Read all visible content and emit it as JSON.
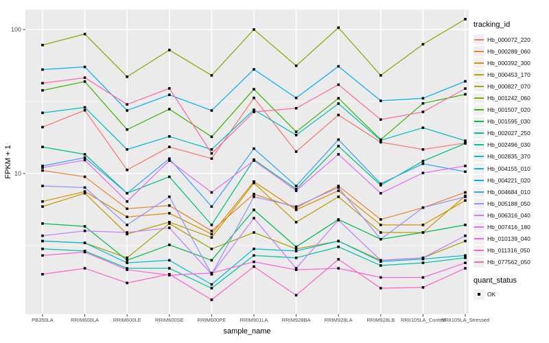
{
  "chart_data": {
    "type": "line",
    "title": "",
    "xlabel": "sample_name",
    "ylabel": "FPKM + 1",
    "y_scale": "log10",
    "y_tick_labels": [
      "100",
      "10"
    ],
    "y_tick_values": [
      100,
      10
    ],
    "y_minor_values": [
      31.62,
      3.162
    ],
    "ylim": [
      1.06,
      138
    ],
    "grid": true,
    "legend_position": "right",
    "legend_title": "tracking_id",
    "quant_status_title": "quant_status",
    "quant_status_label": "OK",
    "point_shape": "black-square",
    "colors": {
      "panel_bg": "#ebebeb",
      "grid": "#ffffff",
      "tick_text": "#4d4d4d",
      "point": "#000000"
    },
    "x_categories": [
      "PB350LA",
      "RRIM600LA",
      "RRIM600LE",
      "RRIM600SE",
      "RRIM600PE",
      "RRIM901LA",
      "RRIM928BA",
      "RRIM928LA",
      "RRIM928LB",
      "RRII105LA_Control",
      "RRII105LA_Stressed"
    ],
    "series": [
      {
        "name": "Hb_000072_220",
        "color": "#F8766D",
        "values": [
          21,
          27.5,
          10.6,
          15.3,
          12.7,
          33.5,
          14.2,
          25.5,
          16.5,
          14.7,
          16.3
        ]
      },
      {
        "name": "Hb_000289_060",
        "color": "#EA8331",
        "values": [
          10.5,
          9.5,
          5.7,
          6.0,
          4.0,
          7.2,
          5.8,
          8.2,
          4.8,
          5.8,
          7.4
        ]
      },
      {
        "name": "Hb_000392_300",
        "color": "#D89000",
        "values": [
          6.4,
          7.5,
          5.0,
          5.3,
          3.8,
          8.8,
          5.6,
          7.6,
          4.4,
          4.4,
          6.5
        ]
      },
      {
        "name": "Hb_000453_170",
        "color": "#C09B00",
        "values": [
          5.9,
          7.3,
          3.8,
          4.6,
          3.6,
          8.6,
          4.6,
          6.9,
          3.9,
          3.9,
          7.0
        ]
      },
      {
        "name": "Hb_000827_070",
        "color": "#A3A500",
        "values": [
          3.4,
          3.3,
          2.6,
          4.5,
          3.0,
          3.9,
          3.0,
          3.4,
          2.5,
          2.6,
          3.4
        ]
      },
      {
        "name": "Hb_001242_060",
        "color": "#7CAE00",
        "values": [
          78,
          93,
          47,
          72,
          48,
          100,
          56,
          103,
          48,
          79,
          118
        ]
      },
      {
        "name": "Hb_001507_020",
        "color": "#39B600",
        "values": [
          37.8,
          43.5,
          20.2,
          28,
          18,
          38.5,
          19.5,
          33.3,
          17.2,
          30.7,
          35.5
        ]
      },
      {
        "name": "Hb_001595_030",
        "color": "#00BB4E",
        "values": [
          4.5,
          4.3,
          2.5,
          3.2,
          2.5,
          5.6,
          3.1,
          4.8,
          3.5,
          3.9,
          4.4
        ]
      },
      {
        "name": "Hb_002027_250",
        "color": "#00BF7D",
        "values": [
          15.3,
          13.6,
          7.3,
          9.5,
          4.4,
          12.5,
          7.8,
          15.5,
          8.3,
          12.2,
          16.2
        ]
      },
      {
        "name": "Hb_002496_030",
        "color": "#00C1A3",
        "values": [
          3.0,
          2.9,
          2.2,
          2.2,
          1.6,
          2.7,
          2.6,
          3.1,
          2.3,
          2.4,
          2.6
        ]
      },
      {
        "name": "Hb_002835_370",
        "color": "#00BFC4",
        "values": [
          26.4,
          28.8,
          14.7,
          18.1,
          14.7,
          27.7,
          18.5,
          30.6,
          17.0,
          20.8,
          16.9
        ]
      },
      {
        "name": "Hb_004155_010",
        "color": "#00BBDB",
        "values": [
          3.4,
          3.3,
          2.4,
          2.5,
          1.7,
          3.0,
          2.9,
          3.4,
          2.45,
          2.55,
          2.7
        ]
      },
      {
        "name": "Hb_004221_020",
        "color": "#00B0F6",
        "values": [
          52.7,
          55,
          27.4,
          35.2,
          27.4,
          52.9,
          33.5,
          55.5,
          32,
          33.3,
          43.7
        ]
      },
      {
        "name": "Hb_004684_010",
        "color": "#35A2FF",
        "values": [
          11.3,
          12.9,
          7.3,
          12.7,
          5.9,
          14.9,
          8.2,
          17.2,
          8.5,
          11.7,
          10.3
        ]
      },
      {
        "name": "Hb_005188_050",
        "color": "#9590FF",
        "values": [
          8.2,
          8.0,
          4.4,
          6.9,
          2.0,
          6.9,
          5.9,
          8.0,
          3.5,
          5.8,
          6.9
        ]
      },
      {
        "name": "Hb_006316_040",
        "color": "#C77CFF",
        "values": [
          3.7,
          4.0,
          3.9,
          4.2,
          2.0,
          4.9,
          2.2,
          4.75,
          2.5,
          2.6,
          3.7
        ]
      },
      {
        "name": "Hb_007416_180",
        "color": "#E76BF3",
        "values": [
          11.0,
          12.4,
          6.4,
          12.3,
          7.4,
          12.3,
          7.6,
          13.6,
          7.3,
          10.1,
          11.3
        ]
      },
      {
        "name": "Hb_010139_040",
        "color": "#FA62DB",
        "values": [
          2.7,
          2.85,
          2.15,
          1.97,
          2.04,
          2.44,
          2.15,
          2.2,
          1.9,
          1.9,
          2.4
        ]
      },
      {
        "name": "Hb_011316_050",
        "color": "#FF61CC",
        "values": [
          2.0,
          2.2,
          1.74,
          2.0,
          1.33,
          2.26,
          1.43,
          2.54,
          1.6,
          1.62,
          2.2
        ]
      },
      {
        "name": "Hb_077562_050",
        "color": "#FF67A4",
        "values": [
          42.4,
          46.3,
          30.2,
          39,
          13.8,
          26.8,
          28.4,
          41.4,
          23.7,
          26.8,
          38.9
        ]
      }
    ]
  }
}
